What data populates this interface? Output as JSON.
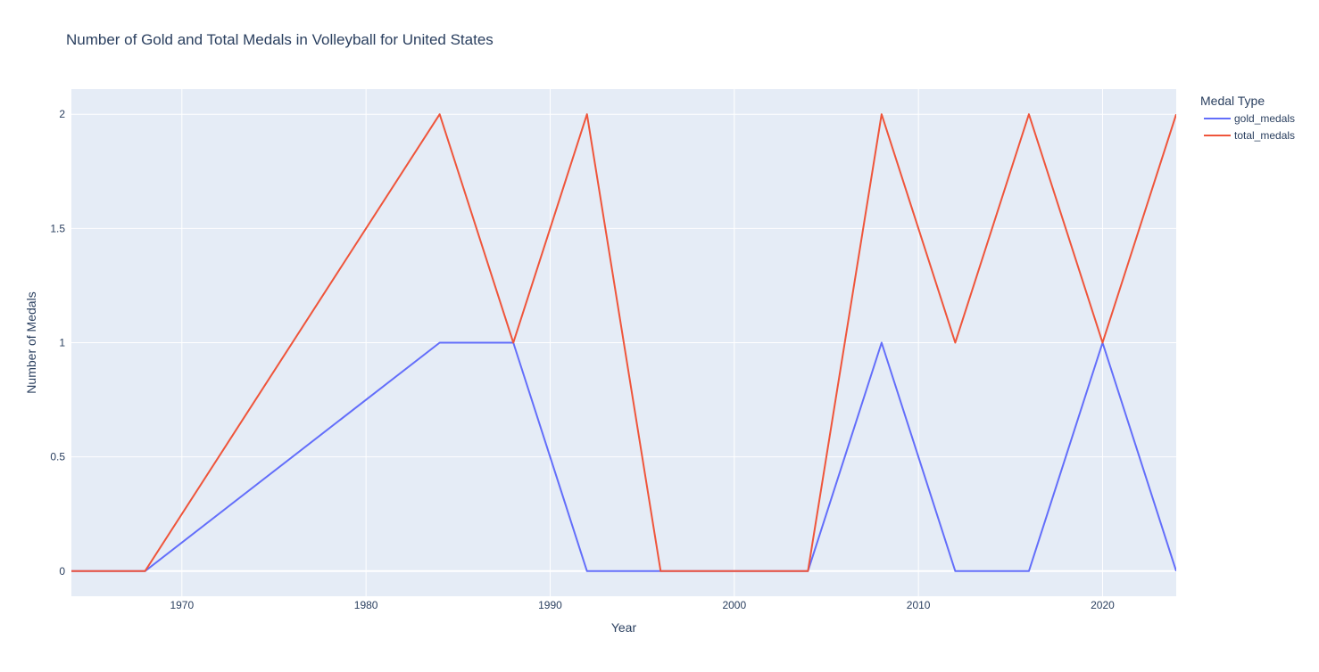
{
  "chart_data": {
    "type": "line",
    "title": "Number of Gold and Total Medals in Volleyball for United States",
    "xlabel": "Year",
    "ylabel": "Number of Medals",
    "xlim": [
      1964,
      2024
    ],
    "ylim": [
      -0.11,
      2.11
    ],
    "x_ticks": [
      1970,
      1980,
      1990,
      2000,
      2010,
      2020
    ],
    "y_ticks": [
      0,
      0.5,
      1,
      1.5,
      2
    ],
    "y_tick_labels": [
      "0",
      "0.5",
      "1",
      "1.5",
      "2"
    ],
    "grid": true,
    "legend": {
      "title": "Medal Type",
      "placement": "top-right, outside plot"
    },
    "x": [
      1964,
      1968,
      1984,
      1988,
      1992,
      1996,
      2000,
      2004,
      2008,
      2012,
      2016,
      2020,
      2024
    ],
    "series": [
      {
        "name": "gold_medals",
        "color": "#636efa",
        "values": [
          0,
          0,
          1,
          1,
          0,
          0,
          0,
          0,
          1,
          0,
          0,
          1,
          0
        ]
      },
      {
        "name": "total_medals",
        "color": "#EF553B",
        "values": [
          0,
          0,
          2,
          1,
          2,
          0,
          0,
          0,
          2,
          1,
          2,
          1,
          2
        ]
      }
    ],
    "colors": {
      "plot_bg": "#E5ECF6",
      "grid": "#ffffff",
      "text": "#2a3f5f"
    }
  }
}
